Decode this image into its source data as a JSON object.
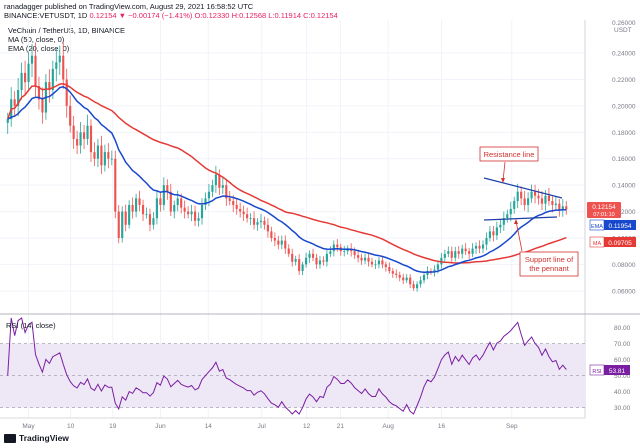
{
  "header": {
    "line1": "ranadagger published on TradingView.com, August 29, 2021 16:58:52 UTC",
    "line2_pair": "BINANCE:VETUSDT, 1D",
    "line2_ohlc": "0.12154 ▼ −0.00174 (−1.41%) O:0.12330 H:0.12568 L:0.11914 C:0.12154",
    "legend_main": "VeChain / TetherUS, 1D, BINANCE",
    "legend_ma": "MA (50, close, 0)",
    "legend_ema": "EMA (20, close, 0)",
    "currency": "USDT",
    "rsi_legend": "RSI (14, close)"
  },
  "colors": {
    "up": "#26a69a",
    "down": "#ef5350",
    "ema": "#1848cc",
    "ma": "#e53935",
    "trend": "#1d3fa8",
    "annotation": "#d32f2f",
    "rsi": "#7b1fa2",
    "rsi_band": "#ede7f6"
  },
  "annotations": {
    "resistance": "Resistance line",
    "support_1": "Support line of",
    "support_2": "the pennant"
  },
  "badges": {
    "price": "0.12154",
    "price_time": "07:01:10",
    "ema_label": "EMA",
    "ema_value": "0.11954",
    "ma_label": "MA",
    "ma_value": "0.09705",
    "rsi_label": "RSI",
    "rsi_value": "53.81"
  },
  "footer": {
    "brand": "TradingView"
  },
  "chart_data": [
    {
      "type": "candlestick",
      "title": "VeChain / TetherUS, 1D, BINANCE",
      "x_labels": [
        "May",
        "10",
        "19",
        "Jun",
        "14",
        "Jul",
        "12",
        "21",
        "Aug",
        "16",
        "Sep"
      ],
      "y_ticks": [
        "0.24000",
        "0.22000",
        "0.20000",
        "0.18000",
        "0.16000",
        "0.14000",
        "0.12000",
        "0.10000",
        "0.08000",
        "0.06000"
      ],
      "y_top_tick": "0.26000",
      "ylim": [
        0.047,
        0.262
      ],
      "close": [
        0.19,
        0.205,
        0.2,
        0.212,
        0.225,
        0.218,
        0.232,
        0.238,
        0.215,
        0.205,
        0.195,
        0.218,
        0.212,
        0.228,
        0.233,
        0.238,
        0.22,
        0.2,
        0.185,
        0.175,
        0.17,
        0.18,
        0.175,
        0.185,
        0.165,
        0.16,
        0.17,
        0.155,
        0.165,
        0.16,
        0.16,
        0.12,
        0.1,
        0.12,
        0.11,
        0.125,
        0.12,
        0.13,
        0.125,
        0.118,
        0.118,
        0.11,
        0.115,
        0.13,
        0.125,
        0.14,
        0.135,
        0.12,
        0.125,
        0.13,
        0.123,
        0.12,
        0.118,
        0.12,
        0.113,
        0.115,
        0.125,
        0.13,
        0.135,
        0.14,
        0.148,
        0.138,
        0.14,
        0.13,
        0.128,
        0.125,
        0.122,
        0.12,
        0.118,
        0.115,
        0.115,
        0.11,
        0.112,
        0.113,
        0.11,
        0.105,
        0.1,
        0.098,
        0.095,
        0.098,
        0.092,
        0.088,
        0.082,
        0.084,
        0.075,
        0.08,
        0.085,
        0.088,
        0.085,
        0.08,
        0.083,
        0.082,
        0.088,
        0.09,
        0.095,
        0.093,
        0.09,
        0.09,
        0.092,
        0.09,
        0.087,
        0.085,
        0.083,
        0.085,
        0.082,
        0.08,
        0.08,
        0.083,
        0.08,
        0.078,
        0.075,
        0.073,
        0.072,
        0.07,
        0.068,
        0.07,
        0.065,
        0.062,
        0.065,
        0.068,
        0.072,
        0.075,
        0.074,
        0.076,
        0.08,
        0.085,
        0.088,
        0.09,
        0.085,
        0.09,
        0.088,
        0.092,
        0.09,
        0.088,
        0.092,
        0.094,
        0.092,
        0.095,
        0.1,
        0.105,
        0.102,
        0.108,
        0.11,
        0.115,
        0.118,
        0.122,
        0.128,
        0.135,
        0.13,
        0.125,
        0.13,
        0.135,
        0.132,
        0.13,
        0.126,
        0.132,
        0.128,
        0.125,
        0.126,
        0.121,
        0.124,
        0.12154
      ],
      "series": [
        {
          "name": "MA (50, close, 0)",
          "last": 0.09705
        },
        {
          "name": "EMA (20, close, 0)",
          "last": 0.11954
        }
      ],
      "grid": true
    },
    {
      "type": "line",
      "title": "RSI (14, close)",
      "y_ticks": [
        30,
        40,
        50,
        60,
        70,
        80
      ],
      "band": [
        30,
        70
      ],
      "ylim": [
        26,
        86
      ],
      "last": 53.81,
      "grid": true
    }
  ]
}
